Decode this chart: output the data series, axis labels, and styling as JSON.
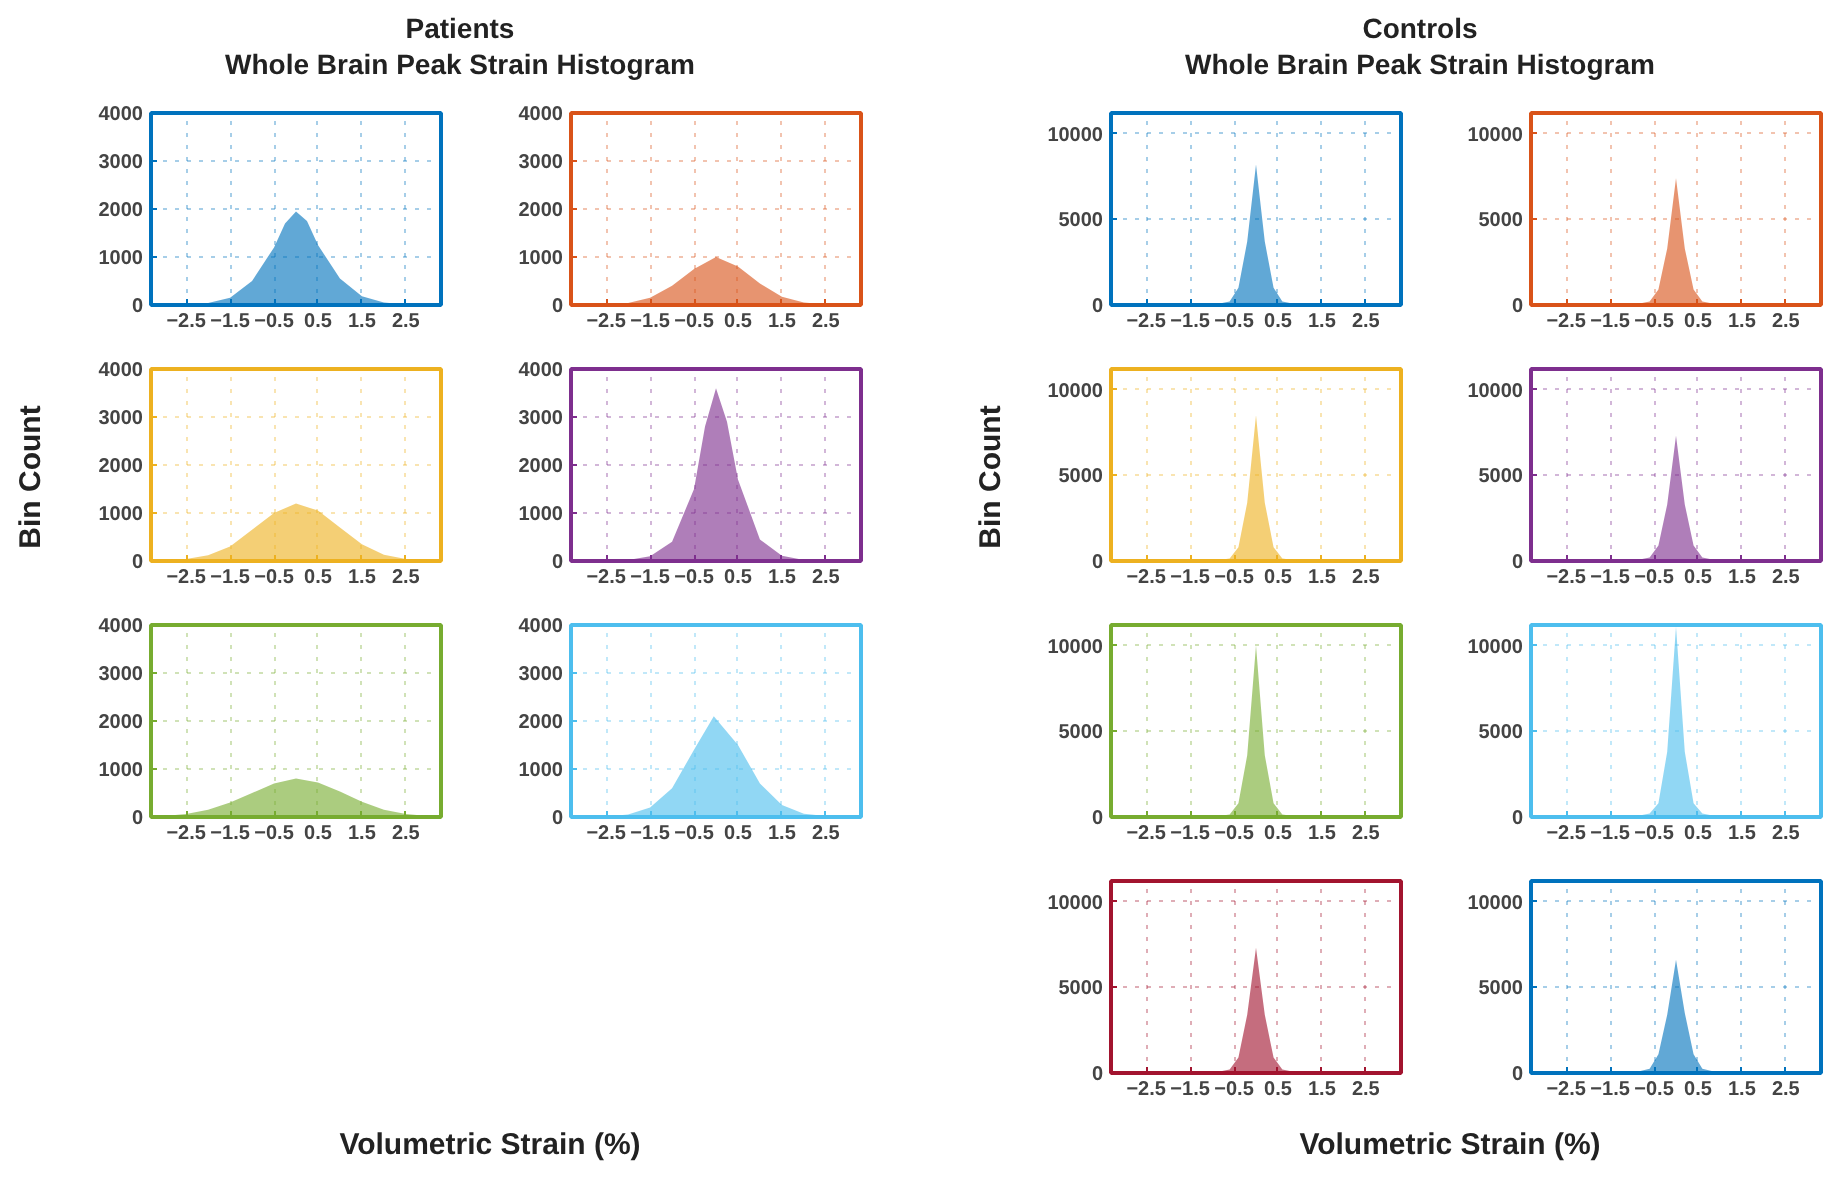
{
  "chart_data": [
    {
      "type": "area",
      "title": "Patients",
      "subtitle": "Whole Brain Peak Strain Histogram",
      "color": "#0072bd",
      "x": [
        -3.3,
        -3,
        -2.5,
        -2,
        -1.5,
        -1,
        -0.5,
        -0.25,
        0,
        0.25,
        0.5,
        1,
        1.5,
        2,
        2.5,
        3,
        3.3
      ],
      "values": [
        0,
        0,
        10,
        40,
        150,
        500,
        1200,
        1700,
        1950,
        1750,
        1250,
        550,
        180,
        50,
        10,
        0,
        0
      ],
      "xlim": [
        -3.3,
        3.3
      ],
      "xticks": [
        -2.5,
        -1.5,
        -0.5,
        0.5,
        1.5,
        2.5
      ],
      "ylim": [
        0,
        4000
      ],
      "yticks": [
        0,
        1000,
        2000,
        3000,
        4000
      ],
      "grid": true
    },
    {
      "type": "area",
      "color": "#d95319",
      "x": [
        -3.3,
        -3,
        -2.5,
        -2,
        -1.5,
        -1,
        -0.5,
        0,
        0.5,
        1,
        1.5,
        2,
        2.5,
        3,
        3.3
      ],
      "values": [
        0,
        0,
        10,
        40,
        150,
        400,
        750,
        1000,
        800,
        450,
        170,
        50,
        10,
        0,
        0
      ],
      "xlim": [
        -3.3,
        3.3
      ],
      "xticks": [
        -2.5,
        -1.5,
        -0.5,
        0.5,
        1.5,
        2.5
      ],
      "ylim": [
        0,
        4000
      ],
      "yticks": [
        0,
        1000,
        2000,
        3000,
        4000
      ],
      "grid": true
    },
    {
      "type": "area",
      "ylabel": "Bin Count",
      "color": "#edb120",
      "x": [
        -3.3,
        -3,
        -2.5,
        -2,
        -1.5,
        -1,
        -0.5,
        0,
        0.5,
        1,
        1.5,
        2,
        2.5,
        3,
        3.3
      ],
      "values": [
        0,
        10,
        40,
        120,
        300,
        650,
        1000,
        1200,
        1050,
        700,
        350,
        130,
        40,
        10,
        0
      ],
      "xlim": [
        -3.3,
        3.3
      ],
      "xticks": [
        -2.5,
        -1.5,
        -0.5,
        0.5,
        1.5,
        2.5
      ],
      "ylim": [
        0,
        4000
      ],
      "yticks": [
        0,
        1000,
        2000,
        3000,
        4000
      ],
      "grid": true
    },
    {
      "type": "area",
      "color": "#7e2f8e",
      "x": [
        -3.3,
        -3,
        -2,
        -1.5,
        -1,
        -0.5,
        -0.25,
        0,
        0.25,
        0.5,
        1,
        1.5,
        2,
        3,
        3.3
      ],
      "values": [
        0,
        0,
        20,
        100,
        400,
        1500,
        2800,
        3600,
        2900,
        1700,
        450,
        110,
        20,
        0,
        0
      ],
      "xlim": [
        -3.3,
        3.3
      ],
      "xticks": [
        -2.5,
        -1.5,
        -0.5,
        0.5,
        1.5,
        2.5
      ],
      "ylim": [
        0,
        4000
      ],
      "yticks": [
        0,
        1000,
        2000,
        3000,
        4000
      ],
      "grid": true
    },
    {
      "type": "area",
      "color": "#77ac30",
      "x": [
        -3.3,
        -3,
        -2.5,
        -2,
        -1.5,
        -1,
        -0.5,
        0,
        0.5,
        1,
        1.5,
        2,
        2.5,
        3,
        3.3
      ],
      "values": [
        0,
        20,
        60,
        150,
        300,
        500,
        700,
        800,
        720,
        530,
        320,
        150,
        60,
        20,
        0
      ],
      "xlim": [
        -3.3,
        3.3
      ],
      "xticks": [
        -2.5,
        -1.5,
        -0.5,
        0.5,
        1.5,
        2.5
      ],
      "ylim": [
        0,
        4000
      ],
      "yticks": [
        0,
        1000,
        2000,
        3000,
        4000
      ],
      "grid": true
    },
    {
      "type": "area",
      "xlabel": "Volumetric Strain (%)",
      "color": "#4dbeee",
      "x": [
        -3.3,
        -3,
        -2.5,
        -2,
        -1.5,
        -1,
        -0.5,
        -0.05,
        0.5,
        1,
        1.5,
        2,
        2.5,
        3,
        3.3
      ],
      "values": [
        0,
        0,
        10,
        50,
        200,
        600,
        1400,
        2100,
        1500,
        700,
        250,
        70,
        20,
        0,
        0
      ],
      "xlim": [
        -3.3,
        3.3
      ],
      "xticks": [
        -2.5,
        -1.5,
        -0.5,
        0.5,
        1.5,
        2.5
      ],
      "ylim": [
        0,
        4000
      ],
      "yticks": [
        0,
        1000,
        2000,
        3000,
        4000
      ],
      "grid": true
    },
    {
      "type": "area",
      "title": "Controls",
      "subtitle": "Whole Brain Peak Strain Histogram",
      "color": "#0072bd",
      "x": [
        -3.3,
        -1,
        -0.6,
        -0.4,
        -0.2,
        0,
        0.2,
        0.4,
        0.6,
        1,
        3.3
      ],
      "values": [
        0,
        0,
        200,
        1000,
        3700,
        8200,
        3700,
        1000,
        200,
        0,
        0
      ],
      "xlim": [
        -3.3,
        3.3
      ],
      "xticks": [
        -2.5,
        -1.5,
        -0.5,
        0.5,
        1.5,
        2.5
      ],
      "ylim": [
        0,
        11200
      ],
      "yticks": [
        0,
        5000,
        10000
      ],
      "grid": true
    },
    {
      "type": "area",
      "color": "#d95319",
      "x": [
        -3.3,
        -1,
        -0.6,
        -0.4,
        -0.2,
        0,
        0.2,
        0.4,
        0.6,
        1,
        3.3
      ],
      "values": [
        0,
        0,
        200,
        900,
        3300,
        7400,
        3300,
        900,
        200,
        0,
        0
      ],
      "xlim": [
        -3.3,
        3.3
      ],
      "xticks": [
        -2.5,
        -1.5,
        -0.5,
        0.5,
        1.5,
        2.5
      ],
      "ylim": [
        0,
        11200
      ],
      "yticks": [
        0,
        5000,
        10000
      ],
      "grid": true
    },
    {
      "type": "area",
      "ylabel": "Bin Count",
      "color": "#edb120",
      "x": [
        -3.3,
        -1,
        -0.6,
        -0.4,
        -0.2,
        0,
        0.2,
        0.4,
        0.6,
        1,
        3.3
      ],
      "values": [
        0,
        0,
        150,
        800,
        3400,
        8500,
        3400,
        800,
        150,
        0,
        0
      ],
      "xlim": [
        -3.3,
        3.3
      ],
      "xticks": [
        -2.5,
        -1.5,
        -0.5,
        0.5,
        1.5,
        2.5
      ],
      "ylim": [
        0,
        11200
      ],
      "yticks": [
        0,
        5000,
        10000
      ],
      "grid": true
    },
    {
      "type": "area",
      "color": "#7e2f8e",
      "x": [
        -3.3,
        -1,
        -0.6,
        -0.4,
        -0.2,
        0,
        0.2,
        0.4,
        0.6,
        1,
        3.3
      ],
      "values": [
        0,
        0,
        200,
        900,
        3300,
        7300,
        3300,
        900,
        200,
        0,
        0
      ],
      "xlim": [
        -3.3,
        3.3
      ],
      "xticks": [
        -2.5,
        -1.5,
        -0.5,
        0.5,
        1.5,
        2.5
      ],
      "ylim": [
        0,
        11200
      ],
      "yticks": [
        0,
        5000,
        10000
      ],
      "grid": true
    },
    {
      "type": "area",
      "color": "#77ac30",
      "x": [
        -3.3,
        -1,
        -0.6,
        -0.4,
        -0.2,
        0,
        0.2,
        0.4,
        0.6,
        1,
        3.3
      ],
      "values": [
        0,
        0,
        150,
        800,
        3600,
        10000,
        3600,
        800,
        150,
        0,
        0
      ],
      "xlim": [
        -3.3,
        3.3
      ],
      "xticks": [
        -2.5,
        -1.5,
        -0.5,
        0.5,
        1.5,
        2.5
      ],
      "ylim": [
        0,
        11200
      ],
      "yticks": [
        0,
        5000,
        10000
      ],
      "grid": true
    },
    {
      "type": "area",
      "color": "#4dbeee",
      "x": [
        -3.3,
        -1,
        -0.6,
        -0.4,
        -0.2,
        0,
        0.2,
        0.4,
        0.6,
        1,
        3.3
      ],
      "values": [
        0,
        0,
        200,
        800,
        3800,
        11100,
        3800,
        800,
        200,
        0,
        0
      ],
      "xlim": [
        -3.3,
        3.3
      ],
      "xticks": [
        -2.5,
        -1.5,
        -0.5,
        0.5,
        1.5,
        2.5
      ],
      "ylim": [
        0,
        11200
      ],
      "yticks": [
        0,
        5000,
        10000
      ],
      "grid": true
    },
    {
      "type": "area",
      "color": "#a2142f",
      "x": [
        -3.3,
        -1,
        -0.6,
        -0.4,
        -0.2,
        0,
        0.2,
        0.4,
        0.6,
        1,
        3.3
      ],
      "values": [
        0,
        0,
        200,
        900,
        3400,
        7300,
        3400,
        900,
        200,
        0,
        0
      ],
      "xlim": [
        -3.3,
        3.3
      ],
      "xticks": [
        -2.5,
        -1.5,
        -0.5,
        0.5,
        1.5,
        2.5
      ],
      "ylim": [
        0,
        11200
      ],
      "yticks": [
        0,
        5000,
        10000
      ],
      "grid": true
    },
    {
      "type": "area",
      "xlabel": "Volumetric Strain (%)",
      "color": "#0072bd",
      "x": [
        -3.3,
        -1,
        -0.6,
        -0.4,
        -0.2,
        0,
        0.2,
        0.4,
        0.6,
        1,
        3.3
      ],
      "values": [
        0,
        0,
        250,
        1100,
        3400,
        6600,
        3500,
        1100,
        250,
        0,
        0
      ],
      "xlim": [
        -3.3,
        3.3
      ],
      "xticks": [
        -2.5,
        -1.5,
        -0.5,
        0.5,
        1.5,
        2.5
      ],
      "ylim": [
        0,
        11200
      ],
      "yticks": [
        0,
        5000,
        10000
      ],
      "grid": true
    }
  ]
}
